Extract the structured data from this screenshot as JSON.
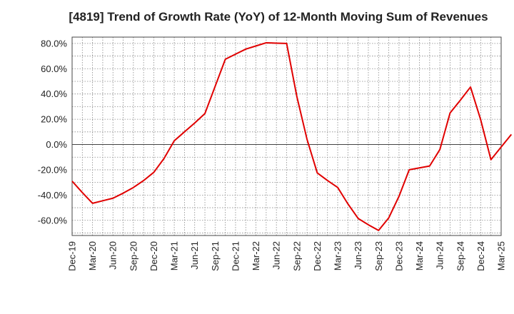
{
  "chart_data": {
    "type": "line",
    "title": "[4819]  Trend of Growth Rate (YoY) of 12-Month Moving Sum of Revenues",
    "xlabel": "",
    "ylabel": "",
    "x_tick_labels": [
      "Dec-19",
      "Mar-20",
      "Jun-20",
      "Sep-20",
      "Dec-20",
      "Mar-21",
      "Jun-21",
      "Sep-21",
      "Dec-21",
      "Mar-22",
      "Jun-22",
      "Sep-22",
      "Dec-22",
      "Mar-23",
      "Jun-23",
      "Sep-23",
      "Dec-23",
      "Mar-24",
      "Jun-24",
      "Sep-24",
      "Dec-24",
      "Mar-25"
    ],
    "y_ticks": [
      80,
      60,
      40,
      20,
      0,
      -20,
      -40,
      -60
    ],
    "y_tick_labels": [
      "80.0%",
      "60.0%",
      "40.0%",
      "20.0%",
      "0.0%",
      "-20.0%",
      "-40.0%",
      "-60.0%"
    ],
    "ylim": [
      -72,
      85
    ],
    "grid": true,
    "series": [
      {
        "color": "#e00000",
        "values": [
          -29,
          -38,
          -46.5,
          -44.5,
          -42.5,
          -38.5,
          -34,
          -28.5,
          -22,
          -11,
          3,
          10,
          17,
          24.5,
          46,
          67.5,
          71.5,
          75.5,
          78,
          80.5,
          80.2,
          80,
          38,
          4,
          -22.5,
          -28.5,
          -34,
          -47,
          -58.5,
          -63.5,
          -68,
          -58,
          -41,
          -20,
          -18.5,
          -17,
          -4,
          25,
          35,
          45.5,
          19.5,
          -12,
          -2,
          8
        ]
      }
    ]
  }
}
